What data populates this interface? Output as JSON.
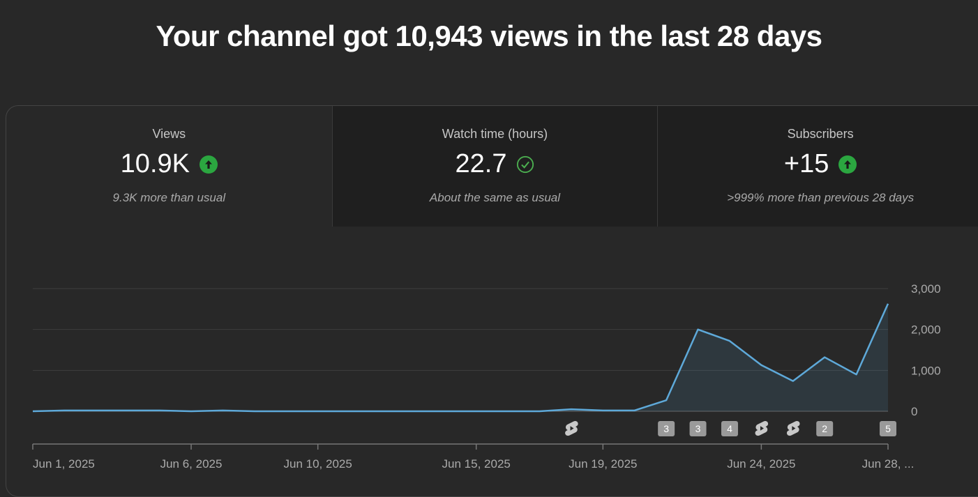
{
  "headline": "Your channel got 10,943 views in the last 28 days",
  "colors": {
    "accent_line": "#5ea9d9",
    "up_green": "#2ba640",
    "check_green": "#4caf50"
  },
  "tabs": [
    {
      "label": "Views",
      "value": "10.9K",
      "icon": "arrow-up-icon",
      "note": "9.3K more than usual"
    },
    {
      "label": "Watch time (hours)",
      "value": "22.7",
      "icon": "check-circle-icon",
      "note": "About the same as usual"
    },
    {
      "label": "Subscribers",
      "value": "+15",
      "icon": "arrow-up-icon",
      "note": ">999% more than previous 28 days"
    }
  ],
  "chart_data": {
    "type": "area",
    "x": [
      "Jun 1",
      "Jun 2",
      "Jun 3",
      "Jun 4",
      "Jun 5",
      "Jun 6",
      "Jun 7",
      "Jun 8",
      "Jun 9",
      "Jun 10",
      "Jun 11",
      "Jun 12",
      "Jun 13",
      "Jun 14",
      "Jun 15",
      "Jun 16",
      "Jun 17",
      "Jun 18",
      "Jun 19",
      "Jun 20",
      "Jun 21",
      "Jun 22",
      "Jun 23",
      "Jun 24",
      "Jun 25",
      "Jun 26",
      "Jun 27",
      "Jun 28"
    ],
    "values": [
      0,
      20,
      20,
      20,
      20,
      0,
      20,
      0,
      0,
      0,
      0,
      0,
      0,
      0,
      0,
      0,
      0,
      50,
      20,
      20,
      270,
      2000,
      1720,
      1130,
      740,
      1320,
      900,
      2630
    ],
    "ylim": [
      0,
      3000
    ],
    "yticks": [
      "3,000",
      "2,000",
      "1,000",
      "0"
    ],
    "ytick_values": [
      3000,
      2000,
      1000,
      0
    ],
    "xtick_labels": [
      "Jun 1, 2025",
      "Jun 6, 2025",
      "Jun 10, 2025",
      "Jun 15, 2025",
      "Jun 19, 2025",
      "Jun 24, 2025",
      "Jun 28, ..."
    ],
    "xtick_days": [
      1,
      6,
      10,
      15,
      19,
      24,
      28
    ],
    "grid": true,
    "markers": [
      {
        "day": 18,
        "kind": "shorts-icon"
      },
      {
        "day": 21,
        "kind": "count",
        "label": "3"
      },
      {
        "day": 22,
        "kind": "count",
        "label": "3"
      },
      {
        "day": 23,
        "kind": "count",
        "label": "4"
      },
      {
        "day": 24,
        "kind": "shorts-icon"
      },
      {
        "day": 25,
        "kind": "shorts-icon"
      },
      {
        "day": 26,
        "kind": "count",
        "label": "2"
      },
      {
        "day": 28,
        "kind": "count",
        "label": "5"
      }
    ]
  }
}
